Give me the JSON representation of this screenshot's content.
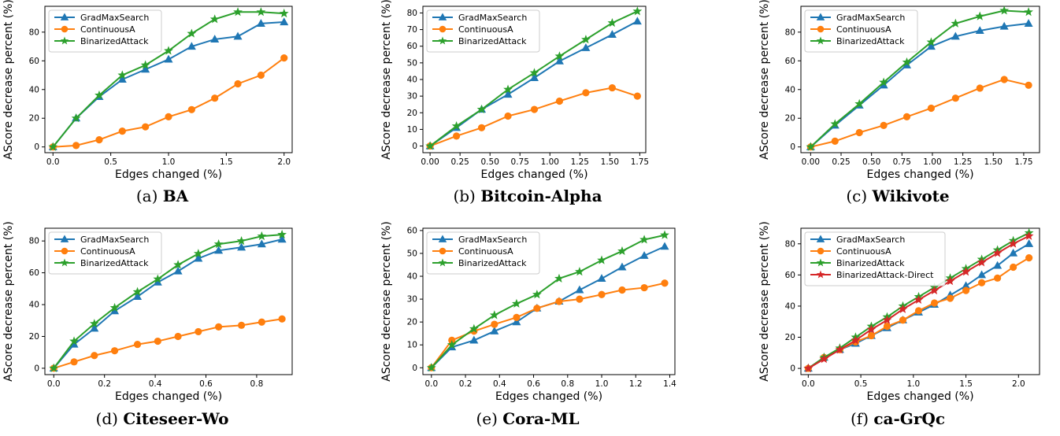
{
  "colors": {
    "GradMaxSearch": "#1f77b4",
    "ContinuousA": "#ff7f0e",
    "BinarizedAttack": "#2ca02c",
    "BinarizedAttack-Direct": "#d62728"
  },
  "chart_data": [
    {
      "type": "line",
      "caption": {
        "prefix": "(a)",
        "name": "BA"
      },
      "xlabel": "Edges changed (%)",
      "ylabel": "AScore decrease percent (%)",
      "xlim": [
        -0.07,
        2.07
      ],
      "ylim": [
        -4,
        98
      ],
      "xticks": [
        0.0,
        0.5,
        1.0,
        1.5,
        2.0
      ],
      "xtick_labels": [
        "0.0",
        "0.5",
        "1.0",
        "1.5",
        "2.0"
      ],
      "yticks": [
        0,
        20,
        40,
        60,
        80
      ],
      "ytick_labels": [
        "0",
        "20",
        "40",
        "60",
        "80"
      ],
      "legend": "top-left",
      "series": [
        {
          "name": "GradMaxSearch",
          "marker": "triangle",
          "x": [
            0,
            0.2,
            0.4,
            0.6,
            0.8,
            1.0,
            1.2,
            1.4,
            1.6,
            1.8,
            2.0
          ],
          "y": [
            0,
            20,
            35,
            47,
            54,
            61,
            70,
            75,
            77,
            86,
            87
          ]
        },
        {
          "name": "ContinuousA",
          "marker": "circle",
          "x": [
            0,
            0.2,
            0.4,
            0.6,
            0.8,
            1.0,
            1.2,
            1.4,
            1.6,
            1.8,
            2.0
          ],
          "y": [
            0,
            1,
            5,
            11,
            14,
            21,
            26,
            34,
            44,
            50,
            62
          ]
        },
        {
          "name": "BinarizedAttack",
          "marker": "star",
          "x": [
            0,
            0.2,
            0.4,
            0.6,
            0.8,
            1.0,
            1.2,
            1.4,
            1.6,
            1.8,
            2.0
          ],
          "y": [
            0,
            20,
            36,
            50,
            57,
            67,
            79,
            89,
            94,
            94,
            93
          ]
        }
      ]
    },
    {
      "type": "line",
      "caption": {
        "prefix": "(b)",
        "name": "Bitcoin-Alpha"
      },
      "xlabel": "Edges changed (%)",
      "ylabel": "AScore decrease percent (%)",
      "xlim": [
        -0.06,
        1.8
      ],
      "ylim": [
        -4,
        84
      ],
      "xticks": [
        0.0,
        0.25,
        0.5,
        0.75,
        1.0,
        1.25,
        1.5,
        1.75
      ],
      "xtick_labels": [
        "0.00",
        "0.25",
        "0.50",
        "0.75",
        "1.00",
        "1.25",
        "1.50",
        "1.75"
      ],
      "yticks": [
        0,
        10,
        20,
        30,
        40,
        50,
        60,
        70,
        80
      ],
      "ytick_labels": [
        "0",
        "10",
        "20",
        "30",
        "40",
        "50",
        "60",
        "70",
        "80"
      ],
      "legend": "top-left",
      "series": [
        {
          "name": "GradMaxSearch",
          "marker": "triangle",
          "x": [
            0,
            0.22,
            0.43,
            0.65,
            0.87,
            1.08,
            1.3,
            1.52,
            1.73
          ],
          "y": [
            0,
            11,
            22,
            31,
            41,
            51,
            59,
            67,
            75
          ]
        },
        {
          "name": "ContinuousA",
          "marker": "circle",
          "x": [
            0,
            0.22,
            0.43,
            0.65,
            0.87,
            1.08,
            1.3,
            1.52,
            1.73
          ],
          "y": [
            0,
            6,
            11,
            18,
            22,
            27,
            32,
            35,
            30
          ]
        },
        {
          "name": "BinarizedAttack",
          "marker": "star",
          "x": [
            0,
            0.22,
            0.43,
            0.65,
            0.87,
            1.08,
            1.3,
            1.52,
            1.73
          ],
          "y": [
            0,
            12,
            22,
            34,
            44,
            54,
            64,
            74,
            81
          ]
        }
      ]
    },
    {
      "type": "line",
      "caption": {
        "prefix": "(c)",
        "name": "Wikivote"
      },
      "xlabel": "Edges changed (%)",
      "ylabel": "AScore decrease percent (%)",
      "xlim": [
        -0.08,
        1.88
      ],
      "ylim": [
        -4,
        98
      ],
      "xticks": [
        0.0,
        0.25,
        0.5,
        0.75,
        1.0,
        1.25,
        1.5,
        1.75
      ],
      "xtick_labels": [
        "0.00",
        "0.25",
        "0.50",
        "0.75",
        "1.00",
        "1.25",
        "1.50",
        "1.75"
      ],
      "yticks": [
        0,
        20,
        40,
        60,
        80
      ],
      "ytick_labels": [
        "0",
        "20",
        "40",
        "60",
        "80"
      ],
      "legend": "top-left",
      "series": [
        {
          "name": "GradMaxSearch",
          "marker": "triangle",
          "x": [
            0,
            0.2,
            0.4,
            0.6,
            0.79,
            0.99,
            1.19,
            1.39,
            1.59,
            1.79
          ],
          "y": [
            0,
            15,
            29,
            43,
            57,
            70,
            77,
            81,
            84,
            86
          ]
        },
        {
          "name": "ContinuousA",
          "marker": "circle",
          "x": [
            0,
            0.2,
            0.4,
            0.6,
            0.79,
            0.99,
            1.19,
            1.39,
            1.59,
            1.79
          ],
          "y": [
            0,
            4,
            10,
            15,
            21,
            27,
            34,
            41,
            47,
            43
          ]
        },
        {
          "name": "BinarizedAttack",
          "marker": "star",
          "x": [
            0,
            0.2,
            0.4,
            0.6,
            0.79,
            0.99,
            1.19,
            1.39,
            1.59,
            1.79
          ],
          "y": [
            0,
            16,
            30,
            45,
            59,
            73,
            86,
            91,
            95,
            94
          ]
        }
      ]
    },
    {
      "type": "line",
      "caption": {
        "prefix": "(d)",
        "name": "Citeseer-Wo"
      },
      "xlabel": "Edges changed (%)",
      "ylabel": "AScore decrease percent (%)",
      "xlim": [
        -0.035,
        0.94
      ],
      "ylim": [
        -4,
        88
      ],
      "xticks": [
        0.0,
        0.2,
        0.4,
        0.6,
        0.8
      ],
      "xtick_labels": [
        "0.0",
        "0.2",
        "0.4",
        "0.6",
        "0.8"
      ],
      "yticks": [
        0,
        20,
        40,
        60,
        80
      ],
      "ytick_labels": [
        "0",
        "20",
        "40",
        "60",
        "80"
      ],
      "legend": "top-left",
      "series": [
        {
          "name": "GradMaxSearch",
          "marker": "triangle",
          "x": [
            0,
            0.08,
            0.16,
            0.24,
            0.33,
            0.41,
            0.49,
            0.57,
            0.65,
            0.74,
            0.82,
            0.9
          ],
          "y": [
            0,
            15,
            25,
            36,
            45,
            54,
            61,
            69,
            74,
            76,
            78,
            81
          ]
        },
        {
          "name": "ContinuousA",
          "marker": "circle",
          "x": [
            0,
            0.08,
            0.16,
            0.24,
            0.33,
            0.41,
            0.49,
            0.57,
            0.65,
            0.74,
            0.82,
            0.9
          ],
          "y": [
            0,
            4,
            8,
            11,
            15,
            17,
            20,
            23,
            26,
            27,
            29,
            31
          ]
        },
        {
          "name": "BinarizedAttack",
          "marker": "star",
          "x": [
            0,
            0.08,
            0.16,
            0.24,
            0.33,
            0.41,
            0.49,
            0.57,
            0.65,
            0.74,
            0.82,
            0.9
          ],
          "y": [
            0,
            17,
            28,
            38,
            48,
            56,
            65,
            72,
            78,
            80,
            83,
            84
          ]
        }
      ]
    },
    {
      "type": "line",
      "caption": {
        "prefix": "(e)",
        "name": "Cora-ML"
      },
      "xlabel": "Edges changed (%)",
      "ylabel": "AScore decrease percent (%)",
      "xlim": [
        -0.05,
        1.43
      ],
      "ylim": [
        -3,
        61
      ],
      "xticks": [
        0.0,
        0.2,
        0.4,
        0.6,
        0.8,
        1.0,
        1.2,
        1.4
      ],
      "xtick_labels": [
        "0.0",
        "0.2",
        "0.4",
        "0.6",
        "0.8",
        "1.0",
        "1.2",
        "1.4"
      ],
      "yticks": [
        0,
        10,
        20,
        30,
        40,
        50,
        60
      ],
      "ytick_labels": [
        "0",
        "10",
        "20",
        "30",
        "40",
        "50",
        "60"
      ],
      "legend": "top-left",
      "series": [
        {
          "name": "GradMaxSearch",
          "marker": "triangle",
          "x": [
            0,
            0.12,
            0.25,
            0.37,
            0.5,
            0.62,
            0.75,
            0.87,
            1.0,
            1.12,
            1.25,
            1.37
          ],
          "y": [
            0,
            9,
            12,
            16,
            20,
            26,
            29,
            34,
            39,
            44,
            49,
            53
          ]
        },
        {
          "name": "ContinuousA",
          "marker": "circle",
          "x": [
            0,
            0.12,
            0.25,
            0.37,
            0.5,
            0.62,
            0.75,
            0.87,
            1.0,
            1.12,
            1.25,
            1.37
          ],
          "y": [
            0,
            12,
            16,
            19,
            22,
            26,
            29,
            30,
            32,
            34,
            35,
            37
          ]
        },
        {
          "name": "BinarizedAttack",
          "marker": "star",
          "x": [
            0,
            0.12,
            0.25,
            0.37,
            0.5,
            0.62,
            0.75,
            0.87,
            1.0,
            1.12,
            1.25,
            1.37
          ],
          "y": [
            0,
            10,
            17,
            23,
            28,
            32,
            39,
            42,
            47,
            51,
            56,
            58
          ]
        }
      ]
    },
    {
      "type": "line",
      "caption": {
        "prefix": "(f)",
        "name": "ca-GrQc"
      },
      "xlabel": "Edges changed (%)",
      "ylabel": "AScore decrease percent (%)",
      "xlim": [
        -0.07,
        2.2
      ],
      "ylim": [
        -4,
        90
      ],
      "xticks": [
        0.0,
        0.5,
        1.0,
        1.5,
        2.0
      ],
      "xtick_labels": [
        "0.0",
        "0.5",
        "1.0",
        "1.5",
        "2.0"
      ],
      "yticks": [
        0,
        20,
        40,
        60,
        80
      ],
      "ytick_labels": [
        "0",
        "20",
        "40",
        "60",
        "80"
      ],
      "legend": "top-left",
      "series": [
        {
          "name": "GradMaxSearch",
          "marker": "triangle",
          "x": [
            0,
            0.15,
            0.3,
            0.45,
            0.6,
            0.75,
            0.9,
            1.05,
            1.2,
            1.35,
            1.5,
            1.65,
            1.8,
            1.95,
            2.1
          ],
          "y": [
            0,
            7,
            12,
            16,
            21,
            26,
            31,
            36,
            41,
            47,
            53,
            60,
            66,
            74,
            80
          ]
        },
        {
          "name": "ContinuousA",
          "marker": "circle",
          "x": [
            0,
            0.15,
            0.3,
            0.45,
            0.6,
            0.75,
            0.9,
            1.05,
            1.2,
            1.35,
            1.5,
            1.65,
            1.8,
            1.95,
            2.1
          ],
          "y": [
            0,
            7,
            12,
            17,
            21,
            27,
            31,
            37,
            42,
            45,
            50,
            55,
            58,
            65,
            71
          ]
        },
        {
          "name": "BinarizedAttack",
          "marker": "star",
          "x": [
            0,
            0.15,
            0.3,
            0.45,
            0.6,
            0.75,
            0.9,
            1.05,
            1.2,
            1.35,
            1.5,
            1.65,
            1.8,
            1.95,
            2.1
          ],
          "y": [
            0,
            7,
            13,
            20,
            27,
            33,
            40,
            46,
            52,
            58,
            64,
            70,
            76,
            82,
            87
          ]
        },
        {
          "name": "BinarizedAttack-Direct",
          "marker": "star",
          "x": [
            0,
            0.15,
            0.3,
            0.45,
            0.6,
            0.75,
            0.9,
            1.05,
            1.2,
            1.35,
            1.5,
            1.65,
            1.8,
            1.95,
            2.1
          ],
          "y": [
            0,
            6,
            12,
            18,
            25,
            31,
            38,
            44,
            50,
            56,
            62,
            68,
            74,
            80,
            85
          ]
        }
      ]
    }
  ]
}
